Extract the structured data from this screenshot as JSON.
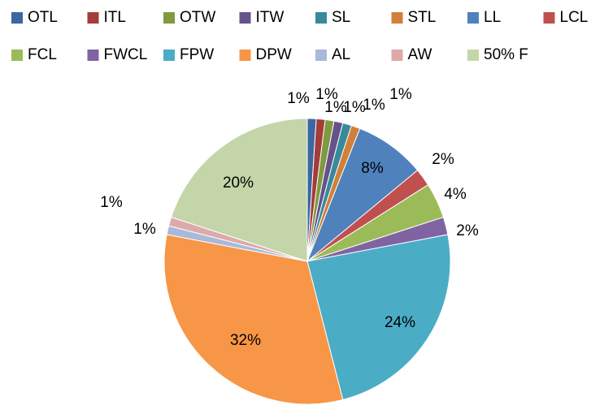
{
  "chart_data": {
    "type": "pie",
    "categories": [
      "OTL",
      "ITL",
      "OTW",
      "ITW",
      "SL",
      "STL",
      "LL",
      "LCL",
      "FCL",
      "FWCL",
      "FPW",
      "DPW",
      "AL",
      "AW",
      "50% F"
    ],
    "values": [
      1,
      1,
      1,
      1,
      1,
      1,
      8,
      2,
      4,
      2,
      24,
      32,
      1,
      1,
      20
    ],
    "value_labels": [
      "1%",
      "1%",
      "1%",
      "1%",
      "1%",
      "1%",
      "8%",
      "2%",
      "4%",
      "2%",
      "24%",
      "32%",
      "1%",
      "1%",
      "20%"
    ],
    "colors": [
      "#3c67a0",
      "#a33c3a",
      "#7f9a3f",
      "#66528b",
      "#378a9c",
      "#d0803a",
      "#4f81bd",
      "#c0504d",
      "#9bbb59",
      "#8064a2",
      "#4bacc6",
      "#f79646",
      "#a9b9d9",
      "#dda9a9",
      "#c4d6a9"
    ],
    "legend": "top"
  }
}
